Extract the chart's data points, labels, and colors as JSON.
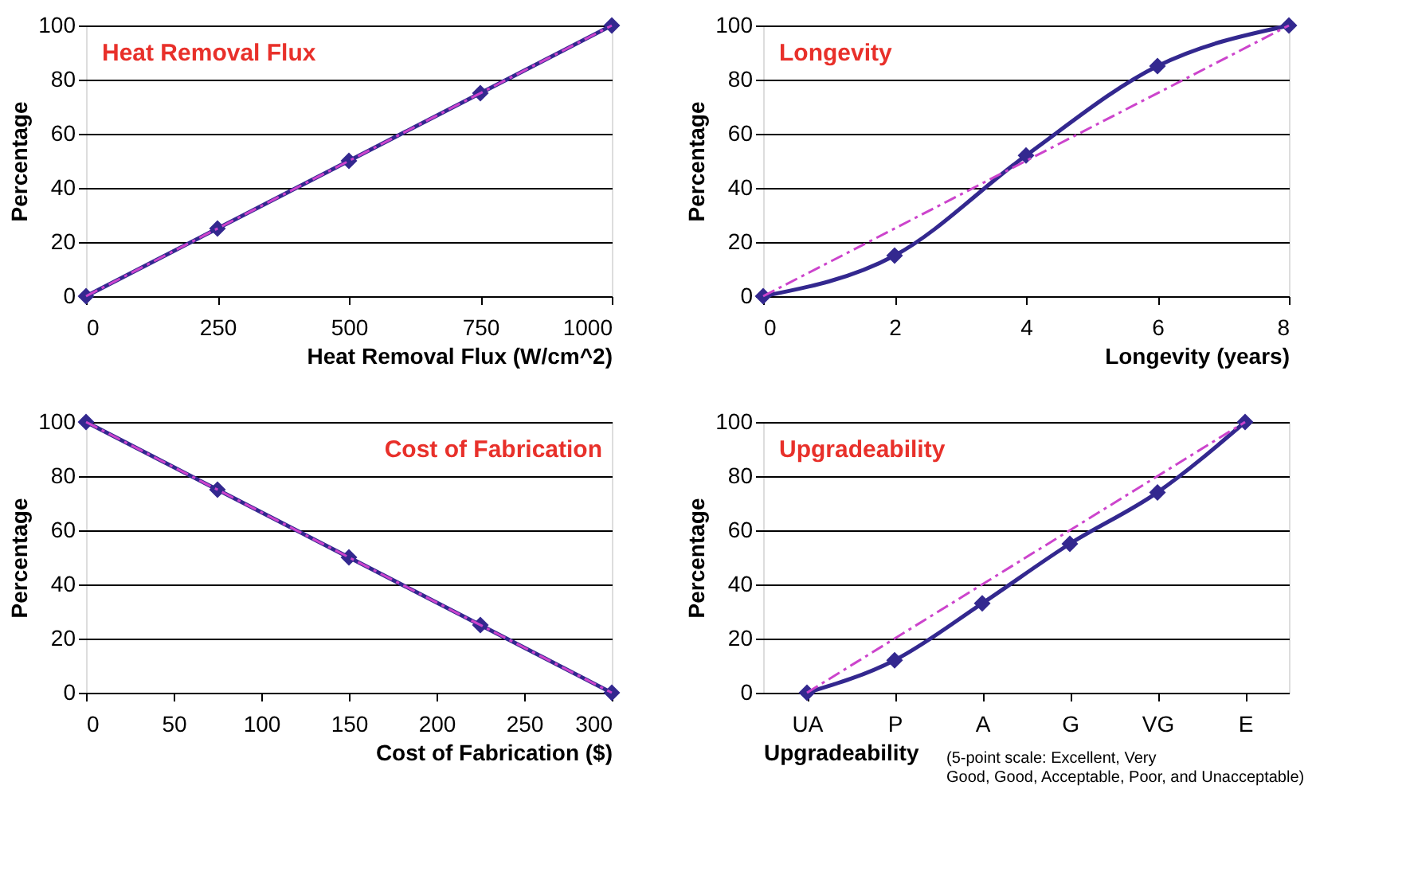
{
  "chart_data": [
    {
      "type": "line",
      "title": "Heat Removal Flux",
      "xlabel": "Heat Removal Flux (W/cm^2)",
      "ylabel": "Percentage",
      "xlim": [
        0,
        1000
      ],
      "xticks": [
        0,
        250,
        500,
        750,
        1000
      ],
      "ylim": [
        0,
        100
      ],
      "yticks": [
        0,
        20,
        40,
        60,
        80,
        100
      ],
      "grid": "y",
      "series": [
        {
          "color": "#33288f",
          "line_style": "solid",
          "marker": "diamond",
          "x": [
            0,
            250,
            500,
            750,
            1000
          ],
          "values": [
            0,
            25,
            50,
            75,
            100
          ]
        },
        {
          "color": "#cc44cc",
          "line_style": "dashed",
          "marker": "none",
          "x": [
            0,
            1000
          ],
          "values": [
            0,
            100
          ]
        }
      ]
    },
    {
      "type": "line",
      "title": "Longevity",
      "xlabel": "Longevity (years)",
      "ylabel": "Percentage",
      "xlim": [
        0,
        8
      ],
      "xticks": [
        0,
        2,
        4,
        6,
        8
      ],
      "ylim": [
        0,
        100
      ],
      "yticks": [
        0,
        20,
        40,
        60,
        80,
        100
      ],
      "grid": "y",
      "series": [
        {
          "color": "#33288f",
          "line_style": "solid",
          "marker": "diamond",
          "x": [
            0,
            2,
            4,
            6,
            8
          ],
          "values": [
            0,
            15,
            52,
            85,
            100
          ]
        },
        {
          "color": "#cc44cc",
          "line_style": "dashed",
          "marker": "none",
          "x": [
            0,
            8
          ],
          "values": [
            0,
            100
          ]
        }
      ]
    },
    {
      "type": "line",
      "title": "Cost of Fabrication",
      "xlabel": "Cost of Fabrication ($)",
      "ylabel": "Percentage",
      "xlim": [
        0,
        300
      ],
      "xticks": [
        0,
        50,
        100,
        150,
        200,
        250,
        300
      ],
      "ylim": [
        0,
        100
      ],
      "yticks": [
        0,
        20,
        40,
        60,
        80,
        100
      ],
      "grid": "y",
      "series": [
        {
          "color": "#33288f",
          "line_style": "solid",
          "marker": "diamond",
          "x": [
            0,
            75,
            150,
            225,
            300
          ],
          "values": [
            100,
            75,
            50,
            25,
            0
          ]
        },
        {
          "color": "#cc44cc",
          "line_style": "dashed",
          "marker": "none",
          "x": [
            0,
            300
          ],
          "values": [
            100,
            0
          ]
        }
      ]
    },
    {
      "type": "line",
      "title": "Upgradeability",
      "xlabel": "Upgradeability",
      "ylabel": "Percentage",
      "categories": [
        "UA",
        "P",
        "A",
        "G",
        "VG",
        "E"
      ],
      "ylim": [
        0,
        100
      ],
      "yticks": [
        0,
        20,
        40,
        60,
        80,
        100
      ],
      "grid": "y",
      "annotations": [
        "(5-point scale: Excellent, Very Good, Good, Acceptable, Poor, and Unacceptable)"
      ],
      "series": [
        {
          "color": "#33288f",
          "line_style": "solid",
          "marker": "diamond",
          "values": [
            0,
            12,
            33,
            55,
            74,
            100
          ]
        },
        {
          "color": "#cc44cc",
          "line_style": "dashed",
          "marker": "none",
          "values": [
            0,
            20,
            40,
            60,
            80,
            100
          ]
        }
      ]
    }
  ]
}
